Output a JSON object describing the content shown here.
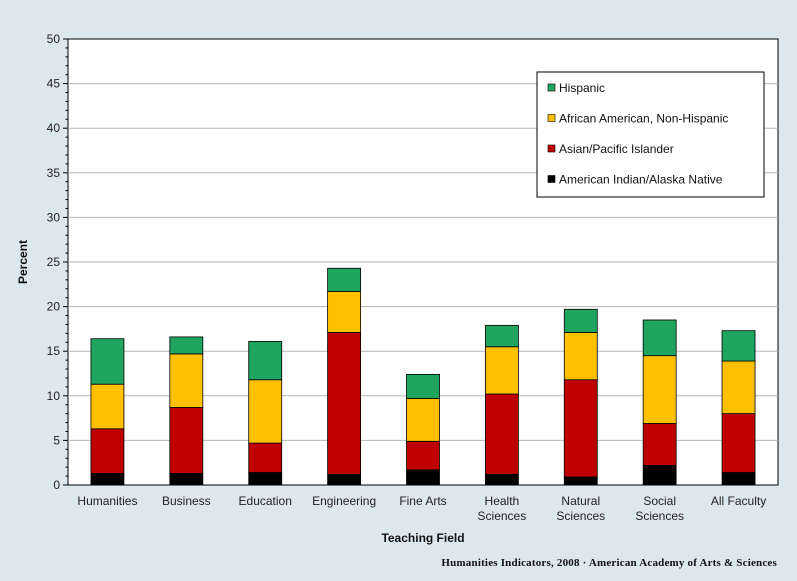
{
  "chart_data": {
    "type": "bar",
    "stacked": true,
    "title": "",
    "xlabel": "Teaching Field",
    "ylabel": "Percent",
    "ylim": [
      0,
      50
    ],
    "ytick_step": 5,
    "grid": true,
    "legend_position": "top-right",
    "categories": [
      [
        "Humanities"
      ],
      [
        "Business"
      ],
      [
        "Education"
      ],
      [
        "Engineering"
      ],
      [
        "Fine Arts"
      ],
      [
        "Health",
        "Sciences"
      ],
      [
        "Natural",
        "Sciences"
      ],
      [
        "Social",
        "Sciences"
      ],
      [
        "All Faculty"
      ]
    ],
    "series": [
      {
        "name": "American Indian/Alaska Native",
        "color": "#000000",
        "values": [
          1.3,
          1.3,
          1.4,
          1.2,
          1.7,
          1.2,
          0.9,
          2.2,
          1.4
        ]
      },
      {
        "name": "Asian/Pacific Islander",
        "color": "#c00000",
        "values": [
          5.0,
          7.4,
          3.3,
          15.9,
          3.2,
          9.0,
          10.9,
          4.7,
          6.6
        ]
      },
      {
        "name": "African American, Non-Hispanic",
        "color": "#ffc000",
        "values": [
          5.0,
          6.0,
          7.1,
          4.6,
          4.8,
          5.3,
          5.3,
          7.6,
          5.9
        ]
      },
      {
        "name": "Hispanic",
        "color": "#1fa55f",
        "values": [
          5.1,
          1.9,
          4.3,
          2.6,
          2.7,
          2.4,
          2.6,
          4.0,
          3.4
        ]
      }
    ]
  },
  "credit": "Humanities  Indicators, 2008 · American Academy of Arts & Sciences"
}
